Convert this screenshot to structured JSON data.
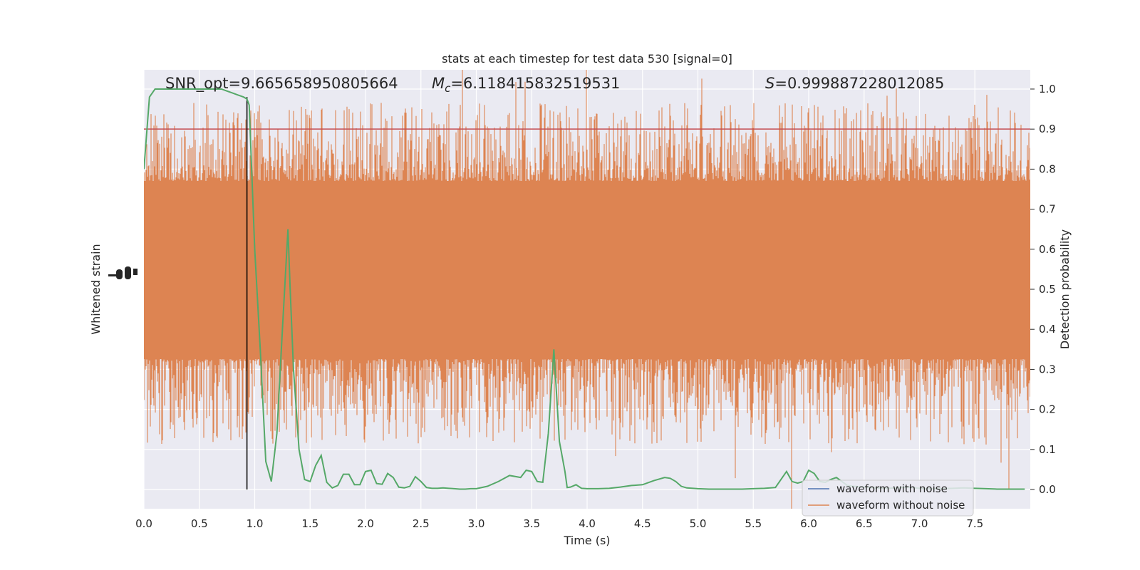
{
  "chart_data": {
    "type": "line",
    "title": "stats at each timestep for test data 530 [signal=0]",
    "xlabel": "Time (s)",
    "ylabel_left": "Whitened strain",
    "ylabel_right": "Detection probability",
    "xlim": [
      0,
      8
    ],
    "ylim_right": [
      -0.048,
      1.048
    ],
    "x_ticks": [
      "0.0",
      "0.5",
      "1.0",
      "1.5",
      "2.0",
      "2.5",
      "3.0",
      "3.5",
      "4.0",
      "4.5",
      "5.0",
      "5.5",
      "6.0",
      "6.5",
      "7.0",
      "7.5"
    ],
    "y_ticks_right": [
      "0.0",
      "0.1",
      "0.2",
      "0.3",
      "0.4",
      "0.5",
      "0.6",
      "0.7",
      "0.8",
      "0.9",
      "1.0"
    ],
    "grid": true,
    "legend_position": "lower-right",
    "annotations": {
      "snr": "SNR_opt=9.665658950805664",
      "mc_symbol": "M",
      "mc_sub": "c",
      "mc_value": "=6.118415832519531",
      "s_symbol": "S",
      "s_value": "=0.999887228012085"
    },
    "threshold": {
      "y": 0.9,
      "color": "#c44e52"
    },
    "marker_line_x": 0.93,
    "series": [
      {
        "name": "waveform with noise",
        "color": "#4c72b0",
        "values": []
      },
      {
        "name": "waveform without noise",
        "color": "#dd8452"
      },
      {
        "color": "#55a868",
        "x": [
          0.0,
          0.05,
          0.1,
          0.15,
          0.2,
          0.25,
          0.3,
          0.35,
          0.4,
          0.45,
          0.5,
          0.55,
          0.6,
          0.65,
          0.7,
          0.75,
          0.8,
          0.85,
          0.9,
          0.93,
          0.95,
          1.0,
          1.05,
          1.1,
          1.15,
          1.2,
          1.25,
          1.3,
          1.32,
          1.35,
          1.4,
          1.45,
          1.5,
          1.55,
          1.6,
          1.65,
          1.7,
          1.75,
          1.8,
          1.85,
          1.9,
          1.95,
          2.0,
          2.05,
          2.1,
          2.15,
          2.2,
          2.25,
          2.3,
          2.35,
          2.4,
          2.45,
          2.5,
          2.55,
          2.6,
          2.65,
          2.7,
          2.75,
          2.8,
          2.85,
          2.9,
          2.95,
          3.0,
          3.1,
          3.2,
          3.3,
          3.4,
          3.45,
          3.5,
          3.55,
          3.6,
          3.65,
          3.7,
          3.75,
          3.8,
          3.82,
          3.85,
          3.9,
          3.95,
          4.0,
          4.05,
          4.1,
          4.2,
          4.3,
          4.4,
          4.5,
          4.6,
          4.7,
          4.75,
          4.8,
          4.85,
          4.9,
          5.0,
          5.1,
          5.2,
          5.3,
          5.4,
          5.5,
          5.6,
          5.7,
          5.75,
          5.8,
          5.85,
          5.9,
          5.95,
          6.0,
          6.05,
          6.1,
          6.15,
          6.2,
          6.25,
          6.3,
          6.35,
          6.4,
          6.5,
          6.6,
          6.7,
          6.8,
          6.9,
          7.0,
          7.1,
          7.2,
          7.3,
          7.4,
          7.5,
          7.6,
          7.7,
          7.8,
          7.95
        ],
        "values": [
          0.8,
          0.98,
          1.0,
          1.0,
          1.0,
          1.0,
          1.0,
          1.0,
          1.0,
          1.0,
          1.0,
          1.0,
          1.0,
          1.0,
          1.0,
          0.995,
          0.99,
          0.985,
          0.98,
          0.975,
          0.96,
          0.6,
          0.35,
          0.07,
          0.02,
          0.14,
          0.4,
          0.65,
          0.5,
          0.3,
          0.1,
          0.025,
          0.02,
          0.06,
          0.085,
          0.018,
          0.004,
          0.01,
          0.038,
          0.038,
          0.012,
          0.012,
          0.045,
          0.048,
          0.015,
          0.013,
          0.04,
          0.03,
          0.006,
          0.004,
          0.008,
          0.032,
          0.02,
          0.005,
          0.003,
          0.003,
          0.004,
          0.003,
          0.002,
          0.001,
          0.001,
          0.002,
          0.002,
          0.008,
          0.02,
          0.035,
          0.03,
          0.048,
          0.045,
          0.02,
          0.018,
          0.14,
          0.35,
          0.12,
          0.045,
          0.005,
          0.006,
          0.012,
          0.003,
          0.002,
          0.002,
          0.002,
          0.003,
          0.006,
          0.01,
          0.012,
          0.022,
          0.03,
          0.028,
          0.02,
          0.008,
          0.004,
          0.002,
          0.001,
          0.001,
          0.001,
          0.001,
          0.002,
          0.003,
          0.005,
          0.025,
          0.045,
          0.02,
          0.016,
          0.02,
          0.048,
          0.04,
          0.02,
          0.018,
          0.025,
          0.03,
          0.02,
          0.01,
          0.008,
          0.006,
          0.004,
          0.003,
          0.004,
          0.006,
          0.003,
          0.002,
          0.002,
          0.003,
          0.004,
          0.003,
          0.002,
          0.001,
          0.001,
          0.001
        ]
      }
    ]
  }
}
